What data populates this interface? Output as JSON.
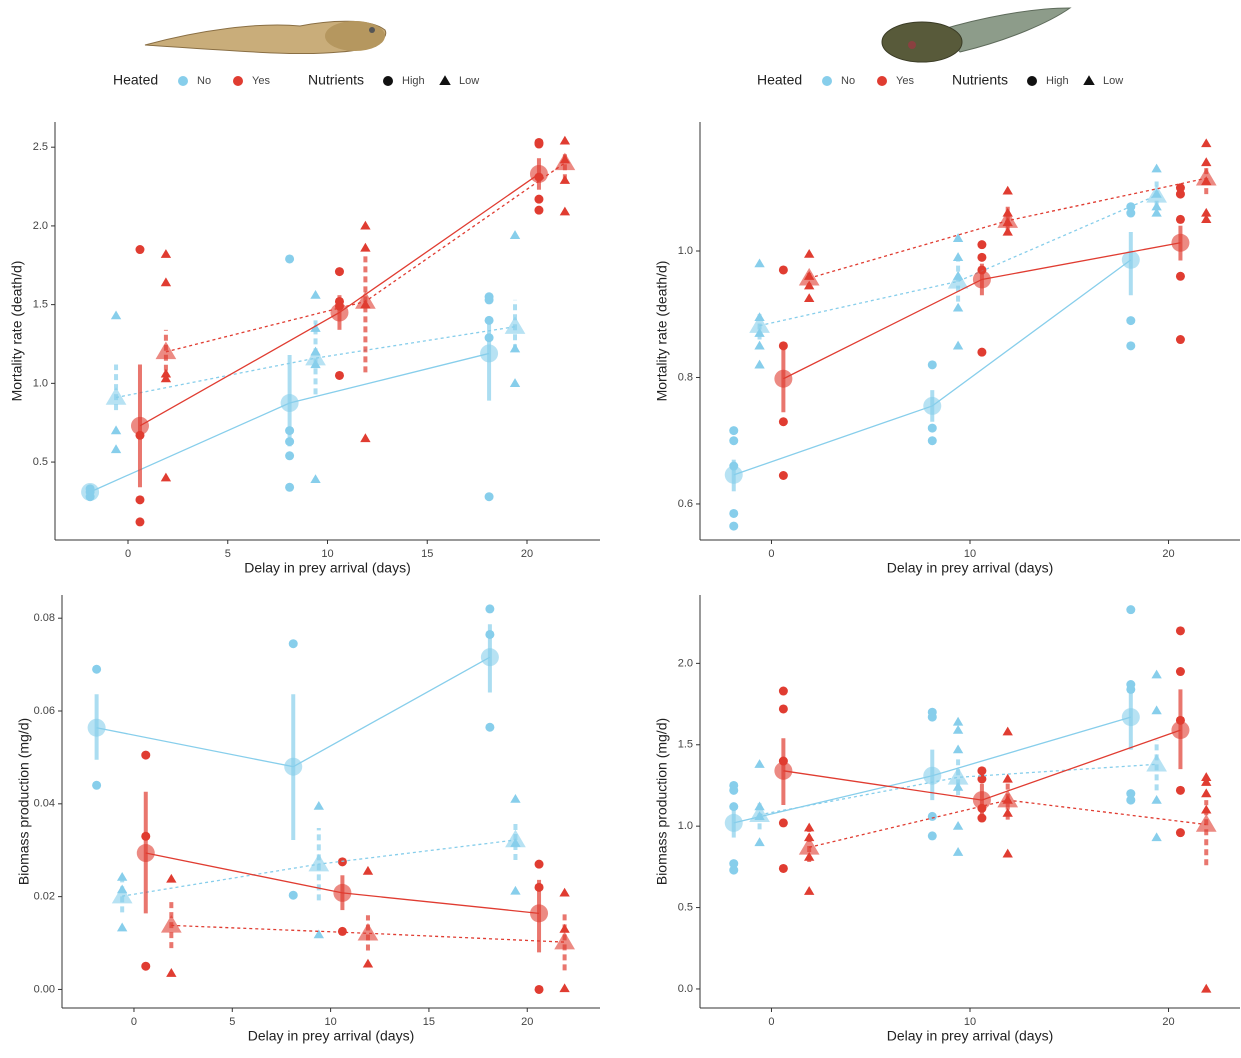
{
  "legends": [
    {
      "heated_title": "Heated",
      "heated": [
        {
          "label": "No",
          "color": "#87ceeb"
        },
        {
          "label": "Yes",
          "color": "#e03c31"
        }
      ],
      "nutrients_title": "Nutrients",
      "nutrients": [
        {
          "label": "High",
          "shape": "circle"
        },
        {
          "label": "Low",
          "shape": "triangle"
        }
      ]
    },
    {
      "heated_title": "Heated",
      "heated": [
        {
          "label": "No",
          "color": "#87ceeb"
        },
        {
          "label": "Yes",
          "color": "#e03c31"
        }
      ],
      "nutrients_title": "Nutrients",
      "nutrients": [
        {
          "label": "High",
          "shape": "circle"
        },
        {
          "label": "Low",
          "shape": "triangle"
        }
      ]
    }
  ],
  "chart_data": [
    {
      "type": "dotplot",
      "x_label": "Delay in prey arrival (days)",
      "y_label": "Mortality rate (death/d)",
      "xlim": [
        -3.66,
        23.66
      ],
      "ylim": [
        0.005,
        2.66
      ],
      "xticks": [
        0,
        5,
        10,
        15,
        20
      ],
      "yticks": [
        0.5,
        {
          "value": 1,
          "label": "1.0"
        },
        1.5,
        {
          "value": 2,
          "label": "2.0"
        },
        2.5
      ],
      "series": [
        {
          "color": "#87ceeb",
          "shape": "circle",
          "line_style": "solid",
          "x": [
            -1.9,
            8.1,
            18.1
          ],
          "values": [
            0.31,
            0.875,
            1.19
          ],
          "lower": [
            0.28,
            0.6,
            0.89
          ],
          "upper": [
            0.33,
            1.18,
            1.4
          ],
          "points_x": [
            -1.9,
            -1.9,
            -1.9,
            8.1,
            8.1,
            8.1,
            8.1,
            8.1,
            18.1,
            18.1,
            18.1,
            18.1,
            18.1
          ],
          "points_y": [
            0.28,
            0.31,
            0.33,
            1.79,
            0.7,
            0.63,
            0.54,
            0.34,
            1.55,
            1.53,
            1.4,
            1.29,
            0.28
          ]
        },
        {
          "color": "#87ceeb",
          "shape": "triangle",
          "line_style": "dotted",
          "x": [
            -0.6,
            9.4,
            19.4
          ],
          "values": [
            0.91,
            1.16,
            1.36
          ],
          "lower": [
            0.83,
            0.93,
            1.21
          ],
          "upper": [
            1.12,
            1.4,
            1.53
          ],
          "points_x": [
            -0.6,
            -0.6,
            -0.6,
            9.4,
            9.4,
            9.4,
            9.4,
            9.4,
            19.4,
            19.4,
            19.4
          ],
          "points_y": [
            1.43,
            0.7,
            0.58,
            1.56,
            1.35,
            1.2,
            1.12,
            0.39,
            1.94,
            1.22,
            1.0
          ]
        },
        {
          "color": "#e03c31",
          "shape": "circle",
          "line_style": "solid",
          "x": [
            0.6,
            10.6,
            20.6
          ],
          "values": [
            0.73,
            1.45,
            2.33
          ],
          "lower": [
            0.34,
            1.34,
            2.23
          ],
          "upper": [
            1.12,
            1.56,
            2.43
          ],
          "points_x": [
            0.6,
            0.6,
            0.6,
            0.6,
            10.6,
            10.6,
            10.6,
            10.6,
            20.6,
            20.6,
            20.6,
            20.6,
            20.6
          ],
          "points_y": [
            1.85,
            0.67,
            0.26,
            0.12,
            1.71,
            1.52,
            1.49,
            1.05,
            2.53,
            2.52,
            2.31,
            2.17,
            2.1
          ]
        },
        {
          "color": "#e03c31",
          "shape": "triangle",
          "line_style": "dotted",
          "x": [
            1.9,
            11.9,
            21.9
          ],
          "values": [
            1.2,
            1.52,
            2.4
          ],
          "lower": [
            1.08,
            1.07,
            2.29
          ],
          "upper": [
            1.34,
            1.81,
            2.48
          ],
          "points_x": [
            1.9,
            1.9,
            1.9,
            1.9,
            1.9,
            11.9,
            11.9,
            11.9,
            11.9,
            21.9,
            21.9,
            21.9,
            21.9
          ],
          "points_y": [
            1.82,
            1.64,
            1.06,
            1.03,
            0.4,
            2.0,
            1.86,
            1.5,
            0.65,
            2.54,
            2.42,
            2.29,
            2.09
          ]
        }
      ]
    },
    {
      "type": "dotplot",
      "x_label": "Delay in prey arrival (days)",
      "y_label": "Mortality rate (death/d)",
      "xlim": [
        -3.6,
        23.6
      ],
      "ylim": [
        0.543,
        1.204
      ],
      "xticks": [
        0,
        10,
        20
      ],
      "yticks": [
        0.6,
        0.8,
        {
          "value": 1,
          "label": "1.0"
        }
      ],
      "series": [
        {
          "color": "#87ceeb",
          "shape": "circle",
          "line_style": "solid",
          "x": [
            -1.9,
            8.1,
            18.1
          ],
          "values": [
            0.646,
            0.755,
            0.986
          ],
          "lower": [
            0.62,
            0.73,
            0.93
          ],
          "upper": [
            0.67,
            0.78,
            1.03
          ],
          "points_x": [
            -1.9,
            -1.9,
            -1.9,
            -1.9,
            -1.9,
            8.1,
            8.1,
            8.1,
            18.1,
            18.1,
            18.1,
            18.1
          ],
          "points_y": [
            0.716,
            0.7,
            0.66,
            0.585,
            0.565,
            0.82,
            0.72,
            0.7,
            1.07,
            1.06,
            0.89,
            0.85
          ]
        },
        {
          "color": "#87ceeb",
          "shape": "triangle",
          "line_style": "dotted",
          "x": [
            -0.6,
            9.4,
            19.4
          ],
          "values": [
            0.882,
            0.952,
            1.088
          ],
          "lower": [
            0.86,
            0.92,
            1.07
          ],
          "upper": [
            0.9,
            0.99,
            1.11
          ],
          "points_x": [
            -0.6,
            -0.6,
            -0.6,
            -0.6,
            -0.6,
            9.4,
            9.4,
            9.4,
            9.4,
            9.4,
            19.4,
            19.4,
            19.4,
            19.4
          ],
          "points_y": [
            0.98,
            0.895,
            0.87,
            0.85,
            0.82,
            1.02,
            0.99,
            0.96,
            0.91,
            0.85,
            1.13,
            1.09,
            1.07,
            1.06
          ]
        },
        {
          "color": "#e03c31",
          "shape": "circle",
          "line_style": "solid",
          "x": [
            0.6,
            10.6,
            20.6
          ],
          "values": [
            0.798,
            0.955,
            1.013
          ],
          "lower": [
            0.745,
            0.93,
            0.985
          ],
          "upper": [
            0.85,
            0.98,
            1.04
          ],
          "points_x": [
            0.6,
            0.6,
            0.6,
            0.6,
            10.6,
            10.6,
            10.6,
            10.6,
            20.6,
            20.6,
            20.6,
            20.6,
            20.6
          ],
          "points_y": [
            0.97,
            0.85,
            0.73,
            0.645,
            1.01,
            0.99,
            0.97,
            0.84,
            1.1,
            1.09,
            1.05,
            0.96,
            0.86
          ]
        },
        {
          "color": "#e03c31",
          "shape": "triangle",
          "line_style": "dotted",
          "x": [
            1.9,
            11.9,
            21.9
          ],
          "values": [
            0.957,
            1.048,
            1.115
          ],
          "lower": [
            0.94,
            1.03,
            1.09
          ],
          "upper": [
            0.97,
            1.07,
            1.14
          ],
          "points_x": [
            1.9,
            1.9,
            1.9,
            1.9,
            11.9,
            11.9,
            11.9,
            11.9,
            21.9,
            21.9,
            21.9,
            21.9,
            21.9
          ],
          "points_y": [
            0.995,
            0.96,
            0.945,
            0.925,
            1.095,
            1.06,
            1.045,
            1.03,
            1.17,
            1.14,
            1.11,
            1.06,
            1.05
          ]
        }
      ]
    },
    {
      "type": "dotplot",
      "x_label": "Delay in prey arrival (days)",
      "y_label": "Biomass production (mg/d)",
      "xlim": [
        -3.66,
        23.7
      ],
      "ylim": [
        -0.004,
        0.085
      ],
      "xticks": [
        0,
        5,
        10,
        15,
        20
      ],
      "yticks": [
        {
          "value": 0,
          "label": "0.00"
        },
        0.02,
        0.04,
        0.06,
        0.08
      ],
      "series": [
        {
          "color": "#87ceeb",
          "shape": "circle",
          "line_style": "solid",
          "x": [
            -1.9,
            8.1,
            18.1
          ],
          "values": [
            0.0564,
            0.048,
            0.0716
          ],
          "lower": [
            0.0495,
            0.0322,
            0.064
          ],
          "upper": [
            0.0636,
            0.0636,
            0.0787
          ],
          "points_x": [
            -1.9,
            -1.9,
            8.1,
            8.1,
            18.1,
            18.1,
            18.1
          ],
          "points_y": [
            0.069,
            0.044,
            0.0745,
            0.0203,
            0.082,
            0.0765,
            0.0565
          ]
        },
        {
          "color": "#87ceeb",
          "shape": "triangle",
          "line_style": "dotted",
          "x": [
            -0.6,
            9.4,
            19.4
          ],
          "values": [
            0.0201,
            0.027,
            0.0322
          ],
          "lower": [
            0.0166,
            0.0192,
            0.0279
          ],
          "upper": [
            0.0236,
            0.0348,
            0.0365
          ],
          "points_x": [
            -0.6,
            -0.6,
            -0.6,
            9.4,
            9.4,
            19.4,
            19.4,
            19.4
          ],
          "points_y": [
            0.0242,
            0.0215,
            0.0133,
            0.0395,
            0.0118,
            0.041,
            0.0315,
            0.0212
          ]
        },
        {
          "color": "#e03c31",
          "shape": "circle",
          "line_style": "solid",
          "x": [
            0.6,
            10.6,
            20.6
          ],
          "values": [
            0.0294,
            0.0208,
            0.0164
          ],
          "lower": [
            0.0164,
            0.0171,
            0.008
          ],
          "upper": [
            0.0426,
            0.0246,
            0.0236
          ],
          "points_x": [
            0.6,
            0.6,
            0.6,
            10.6,
            10.6,
            20.6,
            20.6,
            20.6
          ],
          "points_y": [
            0.0505,
            0.033,
            0.005,
            0.0275,
            0.0125,
            0.027,
            0.022,
            0.0
          ]
        },
        {
          "color": "#e03c31",
          "shape": "triangle",
          "line_style": "dotted",
          "x": [
            1.9,
            11.9,
            21.9
          ],
          "values": [
            0.0138,
            0.0121,
            0.0102
          ],
          "lower": [
            0.0089,
            0.0084,
            0.0041
          ],
          "upper": [
            0.0192,
            0.016,
            0.0166
          ],
          "points_x": [
            1.9,
            1.9,
            11.9,
            11.9,
            21.9,
            21.9,
            21.9
          ],
          "points_y": [
            0.0238,
            0.0035,
            0.0255,
            0.0055,
            0.0208,
            0.013,
            0.0002
          ]
        }
      ]
    },
    {
      "type": "dotplot",
      "x_label": "Delay in prey arrival (days)",
      "y_label": "Biomass production (mg/d)",
      "xlim": [
        -3.6,
        23.6
      ],
      "ylim": [
        -0.117,
        2.42
      ],
      "xticks": [
        0,
        10,
        20
      ],
      "yticks": [
        {
          "value": 0,
          "label": "0.0"
        },
        0.5,
        {
          "value": 1,
          "label": "1.0"
        },
        1.5,
        {
          "value": 2,
          "label": "2.0"
        }
      ],
      "series": [
        {
          "color": "#87ceeb",
          "shape": "circle",
          "line_style": "solid",
          "x": [
            -1.9,
            8.1,
            18.1
          ],
          "values": [
            1.02,
            1.31,
            1.67
          ],
          "lower": [
            0.93,
            1.16,
            1.47
          ],
          "upper": [
            1.11,
            1.47,
            1.84
          ],
          "points_x": [
            -1.9,
            -1.9,
            -1.9,
            -1.9,
            -1.9,
            8.1,
            8.1,
            8.1,
            8.1,
            18.1,
            18.1,
            18.1,
            18.1,
            18.1
          ],
          "points_y": [
            1.25,
            1.22,
            1.12,
            0.77,
            0.73,
            1.7,
            1.67,
            1.06,
            0.94,
            2.33,
            1.87,
            1.84,
            1.2,
            1.16
          ]
        },
        {
          "color": "#87ceeb",
          "shape": "triangle",
          "line_style": "dotted",
          "x": [
            -0.6,
            9.4,
            19.4
          ],
          "values": [
            1.07,
            1.3,
            1.38
          ],
          "lower": [
            0.98,
            1.19,
            1.22
          ],
          "upper": [
            1.16,
            1.41,
            1.53
          ],
          "points_x": [
            -0.6,
            -0.6,
            -0.6,
            -0.6,
            9.4,
            9.4,
            9.4,
            9.4,
            9.4,
            9.4,
            19.4,
            19.4,
            19.4,
            19.4
          ],
          "points_y": [
            1.38,
            1.12,
            1.06,
            0.9,
            1.64,
            1.59,
            1.47,
            1.24,
            1.0,
            0.84,
            1.93,
            1.71,
            1.16,
            0.93
          ]
        },
        {
          "color": "#e03c31",
          "shape": "circle",
          "line_style": "solid",
          "x": [
            0.6,
            10.6,
            20.6
          ],
          "values": [
            1.34,
            1.16,
            1.59
          ],
          "lower": [
            1.13,
            1.07,
            1.35
          ],
          "upper": [
            1.54,
            1.26,
            1.84
          ],
          "points_x": [
            0.6,
            0.6,
            0.6,
            0.6,
            0.6,
            10.6,
            10.6,
            10.6,
            10.6,
            20.6,
            20.6,
            20.6,
            20.6,
            20.6
          ],
          "points_y": [
            1.83,
            1.72,
            1.4,
            1.02,
            0.74,
            1.34,
            1.29,
            1.11,
            1.05,
            2.2,
            1.95,
            1.65,
            1.22,
            0.96
          ]
        },
        {
          "color": "#e03c31",
          "shape": "triangle",
          "line_style": "dotted",
          "x": [
            1.9,
            11.9,
            21.9
          ],
          "values": [
            0.87,
            1.16,
            1.01
          ],
          "lower": [
            0.78,
            1.04,
            0.76
          ],
          "upper": [
            0.98,
            1.29,
            1.16
          ],
          "points_x": [
            1.9,
            1.9,
            1.9,
            1.9,
            11.9,
            11.9,
            11.9,
            11.9,
            11.9,
            21.9,
            21.9,
            21.9,
            21.9,
            21.9
          ],
          "points_y": [
            0.99,
            0.93,
            0.81,
            0.6,
            1.58,
            1.29,
            1.16,
            1.08,
            0.83,
            1.3,
            1.27,
            1.2,
            1.1,
            0.0
          ]
        }
      ]
    }
  ]
}
